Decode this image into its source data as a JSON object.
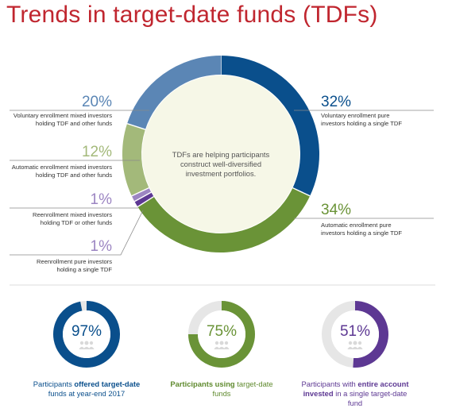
{
  "title": "Trends in target-date funds (TDFs)",
  "center_text": [
    "TDFs are helping participants",
    "construct well-diversified",
    "investment portfolios."
  ],
  "colors": {
    "title": "#c0262f",
    "dark_blue": "#0a4f8c",
    "light_blue": "#5b86b5",
    "green": "#6a9337",
    "light_green": "#a3b97a",
    "light_purple": "#9c85c2",
    "purple": "#5d3893",
    "center_fill": "#f6f7e7",
    "track": "#e6e6e6"
  },
  "chart_data": [
    {
      "type": "pie",
      "donut": true,
      "slices": [
        {
          "label": "Voluntary enrollment pure investors holding a single TDF",
          "value": 32,
          "display": "32%",
          "color": "#0a4f8c"
        },
        {
          "label": "Automatic enrollment pure investors holding a single TDF",
          "value": 34,
          "display": "34%",
          "color": "#6a9337"
        },
        {
          "label": "Reenrollment pure investors holding a single TDF",
          "value": 1,
          "display": "1%",
          "color": "#5d3893"
        },
        {
          "label": "Reenrollment mixed investors holding TDF or other funds",
          "value": 1,
          "display": "1%",
          "color": "#9c85c2"
        },
        {
          "label": "Automatic enrollment mixed investors holding TDF and other funds",
          "value": 12,
          "display": "12%",
          "color": "#a3b97a"
        },
        {
          "label": "Voluntary enrollment mixed investors holding TDF and other funds",
          "value": 20,
          "display": "20%",
          "color": "#5b86b5"
        }
      ]
    },
    {
      "type": "pie",
      "donut": true,
      "gauges": [
        {
          "value": 97,
          "display": "97%",
          "caption_pre": "Participants ",
          "caption_bold": "offered target-date",
          "caption_post": "funds at year-end 2017",
          "color": "#0a4f8c",
          "cap_color": "#0a4f8c"
        },
        {
          "value": 75,
          "display": "75%",
          "caption_pre": "",
          "caption_bold": "Participants using",
          "caption_post": "target-date funds",
          "color": "#6a9337",
          "cap_color": "#5f8a2e"
        },
        {
          "value": 51,
          "display": "51%",
          "caption_pre": "Participants with ",
          "caption_bold": "entire account invested",
          "caption_post": " in a single target-date fund",
          "color": "#5d3893",
          "cap_color": "#5d3893"
        }
      ]
    }
  ]
}
